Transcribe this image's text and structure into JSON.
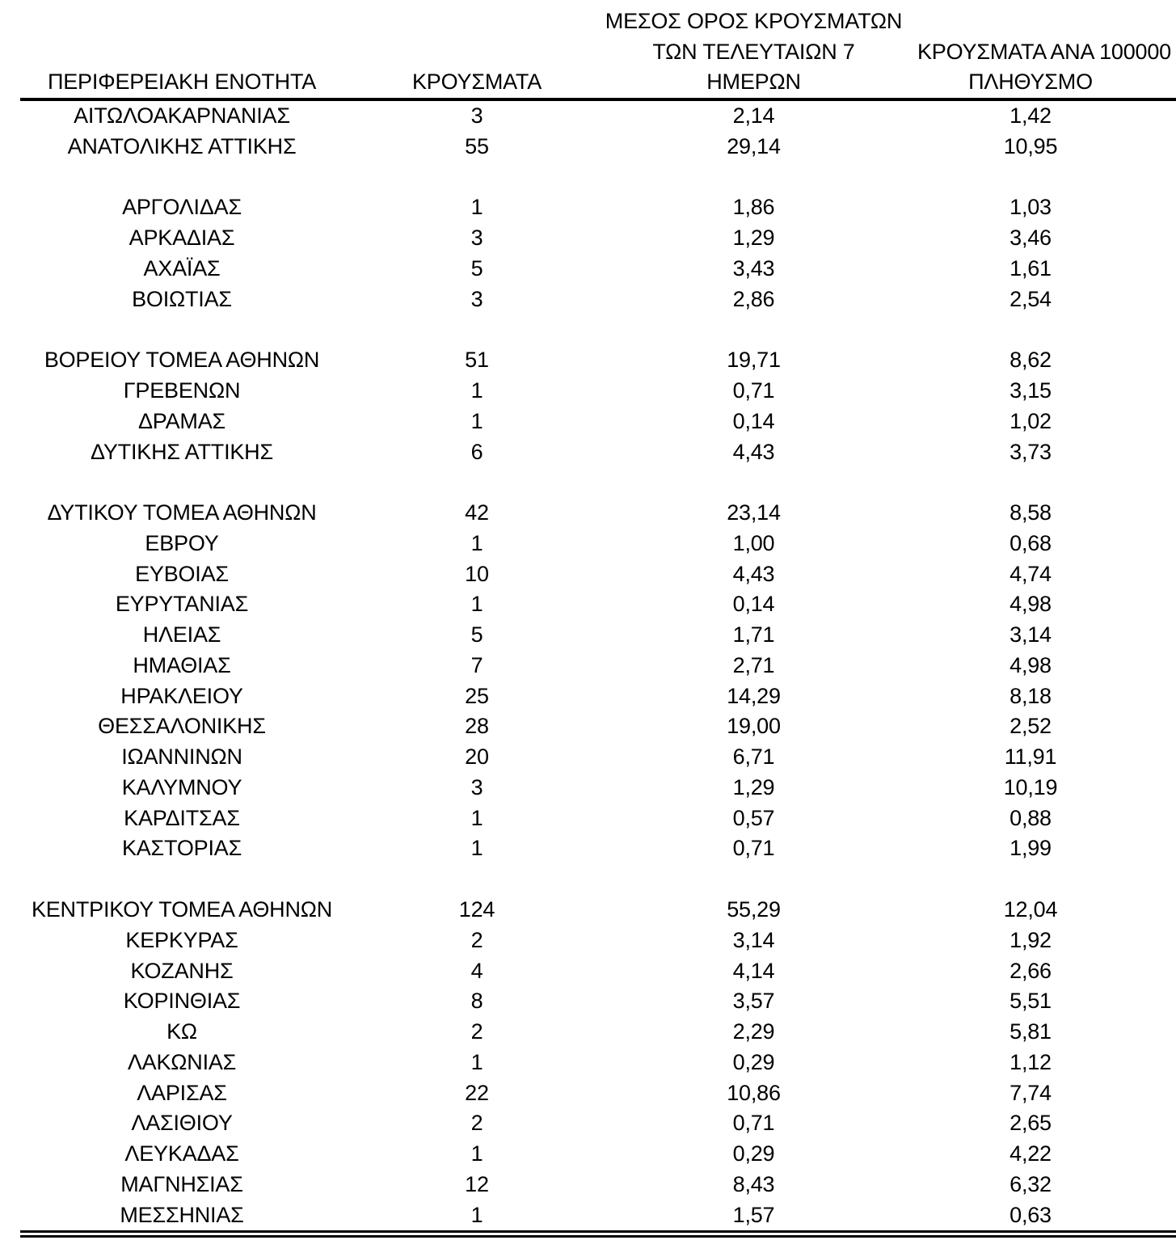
{
  "table": {
    "headers": {
      "col1": "ΠΕΡΙΦΕΡΕΙΑΚΗ ΕΝΟΤΗΤΑ",
      "col2": "ΚΡΟΥΣΜΑΤΑ",
      "col3_line1": "ΜΕΣΟΣ ΟΡΟΣ ΚΡΟΥΣΜΑΤΩΝ",
      "col3_line2": "ΤΩΝ ΤΕΛΕΥΤΑΙΩΝ 7",
      "col3_line3": "ΗΜΕΡΩΝ",
      "col4_line1": "ΚΡΟΥΣΜΑΤΑ ΑΝΑ 100000",
      "col4_line2": "ΠΛΗΘΥΣΜΟ"
    },
    "rows": [
      {
        "region": "ΑΙΤΩΛΟΑΚΑΡΝΑΝΙΑΣ",
        "cases": "3",
        "avg7": "2,14",
        "per100k": "1,42"
      },
      {
        "region": "ΑΝΑΤΟΛΙΚΗΣ ΑΤΤΙΚΗΣ",
        "cases": "55",
        "avg7": "29,14",
        "per100k": "10,95"
      },
      {
        "region": "",
        "cases": "",
        "avg7": "",
        "per100k": ""
      },
      {
        "region": "ΑΡΓΟΛΙΔΑΣ",
        "cases": "1",
        "avg7": "1,86",
        "per100k": "1,03"
      },
      {
        "region": "ΑΡΚΑΔΙΑΣ",
        "cases": "3",
        "avg7": "1,29",
        "per100k": "3,46"
      },
      {
        "region": "ΑΧΑΪΑΣ",
        "cases": "5",
        "avg7": "3,43",
        "per100k": "1,61"
      },
      {
        "region": "ΒΟΙΩΤΙΑΣ",
        "cases": "3",
        "avg7": "2,86",
        "per100k": "2,54"
      },
      {
        "region": "",
        "cases": "",
        "avg7": "",
        "per100k": ""
      },
      {
        "region": "ΒΟΡΕΙΟΥ ΤΟΜΕΑ ΑΘΗΝΩΝ",
        "cases": "51",
        "avg7": "19,71",
        "per100k": "8,62"
      },
      {
        "region": "ΓΡΕΒΕΝΩΝ",
        "cases": "1",
        "avg7": "0,71",
        "per100k": "3,15"
      },
      {
        "region": "ΔΡΑΜΑΣ",
        "cases": "1",
        "avg7": "0,14",
        "per100k": "1,02"
      },
      {
        "region": "ΔΥΤΙΚΗΣ ΑΤΤΙΚΗΣ",
        "cases": "6",
        "avg7": "4,43",
        "per100k": "3,73"
      },
      {
        "region": "",
        "cases": "",
        "avg7": "",
        "per100k": ""
      },
      {
        "region": "ΔΥΤΙΚΟΥ ΤΟΜΕΑ ΑΘΗΝΩΝ",
        "cases": "42",
        "avg7": "23,14",
        "per100k": "8,58"
      },
      {
        "region": "ΕΒΡΟΥ",
        "cases": "1",
        "avg7": "1,00",
        "per100k": "0,68"
      },
      {
        "region": "ΕΥΒΟΙΑΣ",
        "cases": "10",
        "avg7": "4,43",
        "per100k": "4,74"
      },
      {
        "region": "ΕΥΡΥΤΑΝΙΑΣ",
        "cases": "1",
        "avg7": "0,14",
        "per100k": "4,98"
      },
      {
        "region": "ΗΛΕΙΑΣ",
        "cases": "5",
        "avg7": "1,71",
        "per100k": "3,14"
      },
      {
        "region": "ΗΜΑΘΙΑΣ",
        "cases": "7",
        "avg7": "2,71",
        "per100k": "4,98"
      },
      {
        "region": "ΗΡΑΚΛΕΙΟΥ",
        "cases": "25",
        "avg7": "14,29",
        "per100k": "8,18"
      },
      {
        "region": "ΘΕΣΣΑΛΟΝΙΚΗΣ",
        "cases": "28",
        "avg7": "19,00",
        "per100k": "2,52"
      },
      {
        "region": "ΙΩΑΝΝΙΝΩΝ",
        "cases": "20",
        "avg7": "6,71",
        "per100k": "11,91"
      },
      {
        "region": "ΚΑΛΥΜΝΟΥ",
        "cases": "3",
        "avg7": "1,29",
        "per100k": "10,19"
      },
      {
        "region": "ΚΑΡΔΙΤΣΑΣ",
        "cases": "1",
        "avg7": "0,57",
        "per100k": "0,88"
      },
      {
        "region": "ΚΑΣΤΟΡΙΑΣ",
        "cases": "1",
        "avg7": "0,71",
        "per100k": "1,99"
      },
      {
        "region": "",
        "cases": "",
        "avg7": "",
        "per100k": ""
      },
      {
        "region": "ΚΕΝΤΡΙΚΟΥ ΤΟΜΕΑ ΑΘΗΝΩΝ",
        "cases": "124",
        "avg7": "55,29",
        "per100k": "12,04"
      },
      {
        "region": "ΚΕΡΚΥΡΑΣ",
        "cases": "2",
        "avg7": "3,14",
        "per100k": "1,92"
      },
      {
        "region": "ΚΟΖΑΝΗΣ",
        "cases": "4",
        "avg7": "4,14",
        "per100k": "2,66"
      },
      {
        "region": "ΚΟΡΙΝΘΙΑΣ",
        "cases": "8",
        "avg7": "3,57",
        "per100k": "5,51"
      },
      {
        "region": "ΚΩ",
        "cases": "2",
        "avg7": "2,29",
        "per100k": "5,81"
      },
      {
        "region": "ΛΑΚΩΝΙΑΣ",
        "cases": "1",
        "avg7": "0,29",
        "per100k": "1,12"
      },
      {
        "region": "ΛΑΡΙΣΑΣ",
        "cases": "22",
        "avg7": "10,86",
        "per100k": "7,74"
      },
      {
        "region": "ΛΑΣΙΘΙΟΥ",
        "cases": "2",
        "avg7": "0,71",
        "per100k": "2,65"
      },
      {
        "region": "ΛΕΥΚΑΔΑΣ",
        "cases": "1",
        "avg7": "0,29",
        "per100k": "4,22"
      },
      {
        "region": "ΜΑΓΝΗΣΙΑΣ",
        "cases": "12",
        "avg7": "8,43",
        "per100k": "6,32"
      },
      {
        "region": "ΜΕΣΣΗΝΙΑΣ",
        "cases": "1",
        "avg7": "1,57",
        "per100k": "0,63"
      }
    ]
  },
  "chart_data": {
    "type": "table",
    "title": "",
    "columns": [
      "ΠΕΡΙΦΕΡΕΙΑΚΗ ΕΝΟΤΗΤΑ",
      "ΚΡΟΥΣΜΑΤΑ",
      "ΜΕΣΟΣ ΟΡΟΣ ΚΡΟΥΣΜΑΤΩΝ ΤΩΝ ΤΕΛΕΥΤΑΙΩΝ 7 ΗΜΕΡΩΝ",
      "ΚΡΟΥΣΜΑΤΑ ΑΝΑ 100000 ΠΛΗΘΥΣΜΟ"
    ],
    "rows": [
      [
        "ΑΙΤΩΛΟΑΚΑΡΝΑΝΙΑΣ",
        3,
        2.14,
        1.42
      ],
      [
        "ΑΝΑΤΟΛΙΚΗΣ ΑΤΤΙΚΗΣ",
        55,
        29.14,
        10.95
      ],
      [
        "ΑΡΓΟΛΙΔΑΣ",
        1,
        1.86,
        1.03
      ],
      [
        "ΑΡΚΑΔΙΑΣ",
        3,
        1.29,
        3.46
      ],
      [
        "ΑΧΑΪΑΣ",
        5,
        3.43,
        1.61
      ],
      [
        "ΒΟΙΩΤΙΑΣ",
        3,
        2.86,
        2.54
      ],
      [
        "ΒΟΡΕΙΟΥ ΤΟΜΕΑ ΑΘΗΝΩΝ",
        51,
        19.71,
        8.62
      ],
      [
        "ΓΡΕΒΕΝΩΝ",
        1,
        0.71,
        3.15
      ],
      [
        "ΔΡΑΜΑΣ",
        1,
        0.14,
        1.02
      ],
      [
        "ΔΥΤΙΚΗΣ ΑΤΤΙΚΗΣ",
        6,
        4.43,
        3.73
      ],
      [
        "ΔΥΤΙΚΟΥ ΤΟΜΕΑ ΑΘΗΝΩΝ",
        42,
        23.14,
        8.58
      ],
      [
        "ΕΒΡΟΥ",
        1,
        1.0,
        0.68
      ],
      [
        "ΕΥΒΟΙΑΣ",
        10,
        4.43,
        4.74
      ],
      [
        "ΕΥΡΥΤΑΝΙΑΣ",
        1,
        0.14,
        4.98
      ],
      [
        "ΗΛΕΙΑΣ",
        5,
        1.71,
        3.14
      ],
      [
        "ΗΜΑΘΙΑΣ",
        7,
        2.71,
        4.98
      ],
      [
        "ΗΡΑΚΛΕΙΟΥ",
        25,
        14.29,
        8.18
      ],
      [
        "ΘΕΣΣΑΛΟΝΙΚΗΣ",
        28,
        19.0,
        2.52
      ],
      [
        "ΙΩΑΝΝΙΝΩΝ",
        20,
        6.71,
        11.91
      ],
      [
        "ΚΑΛΥΜΝΟΥ",
        3,
        1.29,
        10.19
      ],
      [
        "ΚΑΡΔΙΤΣΑΣ",
        1,
        0.57,
        0.88
      ],
      [
        "ΚΑΣΤΟΡΙΑΣ",
        1,
        0.71,
        1.99
      ],
      [
        "ΚΕΝΤΡΙΚΟΥ ΤΟΜΕΑ ΑΘΗΝΩΝ",
        124,
        55.29,
        12.04
      ],
      [
        "ΚΕΡΚΥΡΑΣ",
        2,
        3.14,
        1.92
      ],
      [
        "ΚΟΖΑΝΗΣ",
        4,
        4.14,
        2.66
      ],
      [
        "ΚΟΡΙΝΘΙΑΣ",
        8,
        3.57,
        5.51
      ],
      [
        "ΚΩ",
        2,
        2.29,
        5.81
      ],
      [
        "ΛΑΚΩΝΙΑΣ",
        1,
        0.29,
        1.12
      ],
      [
        "ΛΑΡΙΣΑΣ",
        22,
        10.86,
        7.74
      ],
      [
        "ΛΑΣΙΘΙΟΥ",
        2,
        0.71,
        2.65
      ],
      [
        "ΛΕΥΚΑΔΑΣ",
        1,
        0.29,
        4.22
      ],
      [
        "ΜΑΓΝΗΣΙΑΣ",
        12,
        8.43,
        6.32
      ],
      [
        "ΜΕΣΣΗΝΙΑΣ",
        1,
        1.57,
        0.63
      ]
    ]
  }
}
